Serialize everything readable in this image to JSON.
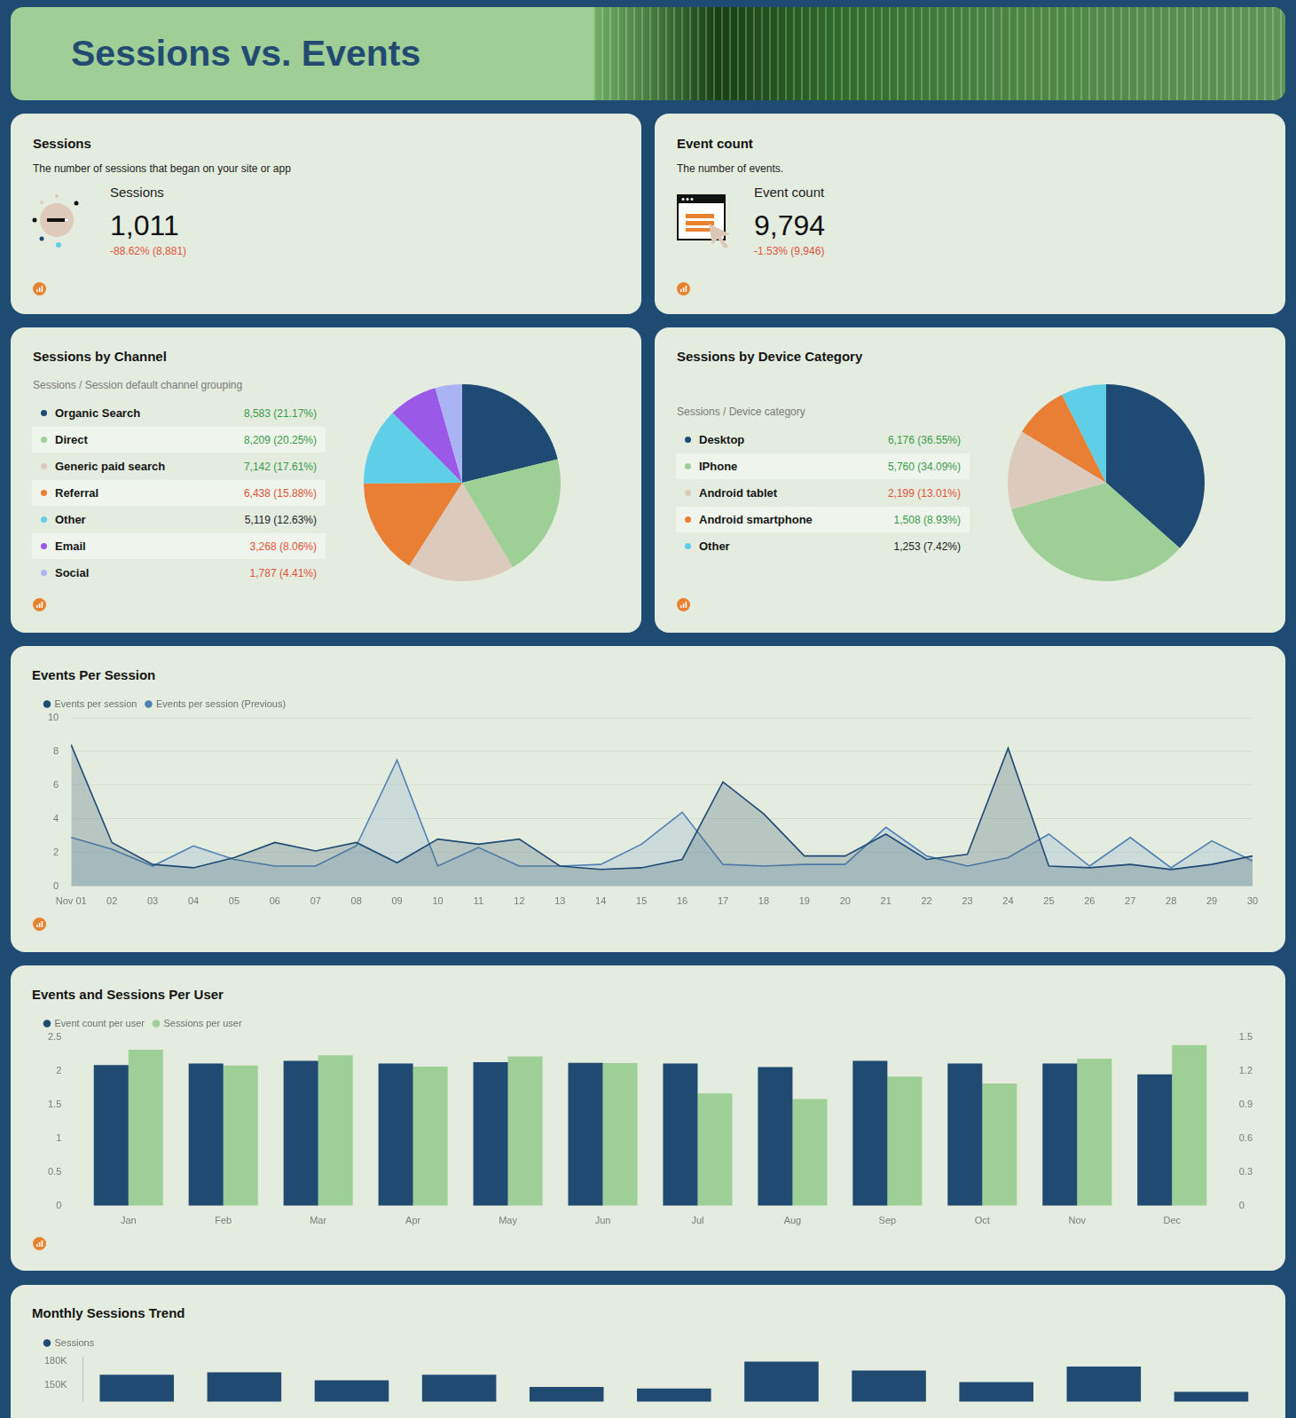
{
  "header": {
    "title": "Sessions vs. Events"
  },
  "scorecards": [
    {
      "title": "Sessions",
      "description": "The number of sessions that began on your site or app",
      "label": "Sessions",
      "value": "1,011",
      "change": "-88.62% (8,881)"
    },
    {
      "title": "Event count",
      "description": "The number of events.",
      "label": "Event count",
      "value": "9,794",
      "change": "-1.53% (9,946)"
    }
  ],
  "chart_data": [
    {
      "type": "pie",
      "title": "Sessions by Channel",
      "subtitle": "Sessions / Session default channel grouping",
      "categories": [
        "Organic Search",
        "Direct",
        "Generic paid search",
        "Referral",
        "Other",
        "Email",
        "Social"
      ],
      "values": [
        8583,
        8209,
        7142,
        6438,
        5119,
        3268,
        1787
      ],
      "value_labels": [
        "8,583 (21.17%)",
        "8,209 (20.25%)",
        "7,142 (17.61%)",
        "6,438 (15.88%)",
        "5,119 (12.63%)",
        "3,268 (8.06%)",
        "1,787 (4.41%)"
      ],
      "colors": [
        "#1f4a73",
        "#9ecf96",
        "#dccbbd",
        "#e97e35",
        "#5fcfe8",
        "#9b59e8",
        "#aab4f5"
      ]
    },
    {
      "type": "pie",
      "title": "Sessions by Device Category",
      "subtitle": "Sessions / Device category",
      "categories": [
        "Desktop",
        "IPhone",
        "Android tablet",
        "Android smartphone",
        "Other"
      ],
      "values": [
        6176,
        5760,
        2199,
        1508,
        1253
      ],
      "value_labels": [
        "6,176 (36.55%)",
        "5,760 (34.09%)",
        "2,199 (13.01%)",
        "1,508 (8.93%)",
        "1,253 (7.42%)"
      ],
      "colors": [
        "#1f4a73",
        "#9ecf96",
        "#dccbbd",
        "#e97e35",
        "#5fcfe8"
      ]
    },
    {
      "type": "line",
      "title": "Events Per Session",
      "categories": [
        "Nov 01",
        "02",
        "03",
        "04",
        "05",
        "06",
        "07",
        "08",
        "09",
        "10",
        "11",
        "12",
        "13",
        "14",
        "15",
        "16",
        "17",
        "18",
        "19",
        "20",
        "21",
        "22",
        "23",
        "24",
        "25",
        "26",
        "27",
        "28",
        "29",
        "30"
      ],
      "series": [
        {
          "name": "Events per session",
          "color": "#1f4a73",
          "values": [
            8.4,
            2.6,
            1.3,
            1.1,
            1.7,
            2.6,
            2.1,
            2.6,
            1.4,
            2.8,
            2.5,
            2.8,
            1.2,
            1.0,
            1.1,
            1.6,
            6.2,
            4.3,
            1.8,
            1.8,
            3.1,
            1.6,
            1.9,
            8.2,
            1.2,
            1.1,
            1.3,
            1.0,
            1.3,
            1.8
          ]
        },
        {
          "name": "Events per session (Previous)",
          "color": "#4f80b3",
          "values": [
            2.9,
            2.2,
            1.2,
            2.4,
            1.6,
            1.2,
            1.2,
            2.4,
            7.5,
            1.2,
            2.3,
            1.2,
            1.2,
            1.3,
            2.5,
            4.4,
            1.3,
            1.2,
            1.3,
            1.3,
            3.5,
            1.8,
            1.2,
            1.7,
            3.1,
            1.2,
            2.9,
            1.1,
            2.7,
            1.5
          ]
        }
      ],
      "ylim": [
        0,
        10
      ],
      "yticks": [
        0,
        2,
        4,
        6,
        8,
        10
      ],
      "grid": true,
      "legend": "top-left"
    },
    {
      "type": "bar",
      "title": "Events and Sessions Per User",
      "categories": [
        "Jan",
        "Feb",
        "Mar",
        "Apr",
        "May",
        "Jun",
        "Jul",
        "Aug",
        "Sep",
        "Oct",
        "Nov",
        "Dec"
      ],
      "series": [
        {
          "name": "Event count per user",
          "color": "#214a72",
          "values": [
            2.09,
            2.11,
            2.15,
            2.11,
            2.13,
            2.12,
            2.11,
            2.06,
            2.15,
            2.11,
            2.11,
            1.95
          ]
        },
        {
          "name": "Sessions per user",
          "color": "#9ecf96",
          "axis": "y2",
          "values": [
            1.39,
            1.25,
            1.34,
            1.24,
            1.33,
            1.27,
            1.0,
            0.95,
            1.15,
            1.09,
            1.31,
            1.43
          ]
        }
      ],
      "ylim": [
        0,
        2.5
      ],
      "yticks": [
        0,
        0.5,
        1,
        1.5,
        2,
        2.5
      ],
      "y2lim": [
        0,
        1.5
      ],
      "y2ticks": [
        0,
        0.3,
        0.6,
        0.9,
        1.2,
        1.5
      ],
      "grid": false,
      "legend": "top-left"
    },
    {
      "type": "bar",
      "title": "Monthly Sessions Trend",
      "categories": [
        null,
        null,
        null,
        null,
        null,
        null,
        null,
        null,
        null,
        null,
        null
      ],
      "series": [
        {
          "name": "Sessions",
          "color": "#214a72",
          "values": [
            163000,
            166000,
            156000,
            163000,
            148000,
            146000,
            179000,
            168000,
            154000,
            173000,
            142000
          ]
        }
      ],
      "ylim": [
        130000,
        185000
      ],
      "yticks": [
        {
          "value": 150000,
          "label": "150K"
        },
        {
          "value": 180000,
          "label": "180K"
        }
      ],
      "grid": false,
      "legend": "top-left",
      "tick_labels": "y"
    }
  ]
}
